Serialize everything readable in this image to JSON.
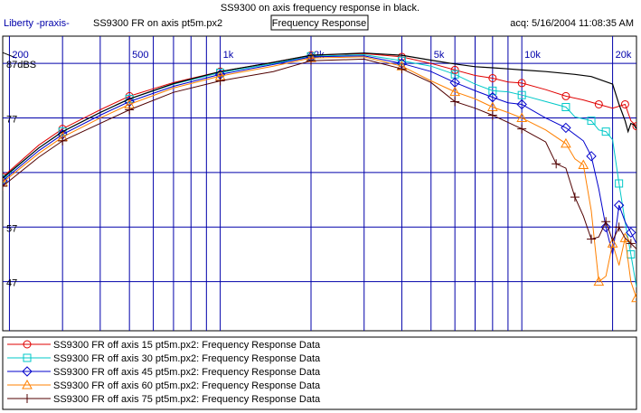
{
  "chart_data": {
    "type": "line",
    "title": "SS9300 on axis frequency response in black.",
    "header_left_app": "Liberty -praxis-",
    "header_left_file": "SS9300 FR on axis pt5m.px2",
    "header_center": "Frequency Response",
    "header_right": "acq: 5/16/2004 11:08:35 AM",
    "x_scale": "log",
    "xlim": [
      190,
      24000
    ],
    "ylim": [
      38,
      92
    ],
    "x_tick_labels": [
      {
        "value": 200,
        "label": "200"
      },
      {
        "value": 500,
        "label": "500"
      },
      {
        "value": 1000,
        "label": "1k"
      },
      {
        "value": 2000,
        "label": "2k"
      },
      {
        "value": 5000,
        "label": "5k"
      },
      {
        "value": 10000,
        "label": "10k"
      },
      {
        "value": 20000,
        "label": "20k"
      }
    ],
    "y_tick_labels": [
      {
        "value": 87,
        "label": "87dBS"
      },
      {
        "value": 77,
        "label": "77"
      },
      {
        "value": 57,
        "label": "57"
      },
      {
        "value": 47,
        "label": "47"
      }
    ],
    "x_gridlines": [
      200,
      300,
      400,
      500,
      600,
      700,
      800,
      900,
      1000,
      2000,
      3000,
      4000,
      5000,
      6000,
      7000,
      8000,
      9000,
      10000,
      20000
    ],
    "y_gridlines": [
      87,
      77,
      67,
      57,
      47
    ],
    "legend_position": "bottom",
    "series": [
      {
        "name": "SS9300 FR off axis  15 pt5m.px2:  Frequency Response Data",
        "color": "#e00000",
        "marker": "circle",
        "points": [
          [
            190,
            66.2
          ],
          [
            250,
            72
          ],
          [
            300,
            75
          ],
          [
            400,
            78.5
          ],
          [
            500,
            81
          ],
          [
            700,
            83.5
          ],
          [
            1000,
            85.5
          ],
          [
            1500,
            87.2
          ],
          [
            2000,
            88.5
          ],
          [
            3000,
            88.8
          ],
          [
            4000,
            88.2
          ],
          [
            5000,
            87
          ],
          [
            6000,
            85.8
          ],
          [
            7000,
            84.8
          ],
          [
            8000,
            84.3
          ],
          [
            9000,
            83.6
          ],
          [
            10000,
            83.4
          ],
          [
            12000,
            82.2
          ],
          [
            14000,
            81
          ],
          [
            16000,
            80.3
          ],
          [
            18000,
            79.5
          ],
          [
            20000,
            78.8
          ],
          [
            22000,
            79.5
          ],
          [
            23000,
            76.5
          ],
          [
            24000,
            75.5
          ]
        ]
      },
      {
        "name": "SS9300 FR off axis  30 pt5m.px2:  Frequency Response Data",
        "color": "#00c8c8",
        "marker": "square",
        "points": [
          [
            190,
            65.8
          ],
          [
            250,
            71.5
          ],
          [
            300,
            74.5
          ],
          [
            400,
            78
          ],
          [
            500,
            80.5
          ],
          [
            700,
            83.2
          ],
          [
            1000,
            85.3
          ],
          [
            1500,
            87
          ],
          [
            2000,
            88.3
          ],
          [
            3000,
            88.6
          ],
          [
            4000,
            87.5
          ],
          [
            5000,
            86.5
          ],
          [
            6000,
            85
          ],
          [
            7000,
            83.2
          ],
          [
            8000,
            82
          ],
          [
            9000,
            81.8
          ],
          [
            10000,
            81.2
          ],
          [
            12000,
            80
          ],
          [
            14000,
            79
          ],
          [
            15000,
            77.2
          ],
          [
            17000,
            76.5
          ],
          [
            18000,
            74.8
          ],
          [
            19000,
            74.5
          ],
          [
            20000,
            73
          ],
          [
            21000,
            65
          ],
          [
            22000,
            58
          ],
          [
            23000,
            52
          ],
          [
            24000,
            46
          ]
        ]
      },
      {
        "name": "SS9300 FR off axis  45 pt5m.px2:  Frequency Response Data",
        "color": "#0000cc",
        "marker": "diamond",
        "points": [
          [
            190,
            65.5
          ],
          [
            250,
            71
          ],
          [
            300,
            74
          ],
          [
            400,
            77.5
          ],
          [
            500,
            80
          ],
          [
            700,
            82.8
          ],
          [
            1000,
            85
          ],
          [
            1500,
            86.8
          ],
          [
            2000,
            88.2
          ],
          [
            3000,
            88.4
          ],
          [
            4000,
            87
          ],
          [
            5000,
            85.5
          ],
          [
            6000,
            83.5
          ],
          [
            7000,
            82
          ],
          [
            8000,
            80.8
          ],
          [
            9000,
            79.8
          ],
          [
            10000,
            79.5
          ],
          [
            12000,
            77
          ],
          [
            14000,
            75.2
          ],
          [
            16000,
            72.8
          ],
          [
            17000,
            70
          ],
          [
            18000,
            64
          ],
          [
            19000,
            57
          ],
          [
            20000,
            52
          ],
          [
            21000,
            61
          ],
          [
            22000,
            58
          ],
          [
            23000,
            56
          ],
          [
            24000,
            54
          ]
        ]
      },
      {
        "name": "SS9300 FR off axis  60 pt5m.px2:  Frequency Response Data",
        "color": "#ff8000",
        "marker": "triangle",
        "points": [
          [
            190,
            65.2
          ],
          [
            250,
            70.5
          ],
          [
            300,
            73.5
          ],
          [
            400,
            77
          ],
          [
            500,
            79.5
          ],
          [
            700,
            82.5
          ],
          [
            1000,
            84.7
          ],
          [
            1500,
            86.5
          ],
          [
            2000,
            88
          ],
          [
            3000,
            88.2
          ],
          [
            4000,
            86.5
          ],
          [
            5000,
            83.8
          ],
          [
            6000,
            81.8
          ],
          [
            7000,
            80.5
          ],
          [
            8000,
            79
          ],
          [
            9000,
            78
          ],
          [
            10000,
            77
          ],
          [
            12000,
            74.8
          ],
          [
            14000,
            72.3
          ],
          [
            15000,
            69.5
          ],
          [
            16000,
            68.4
          ],
          [
            17000,
            60
          ],
          [
            18000,
            47
          ],
          [
            19000,
            48
          ],
          [
            20000,
            54
          ],
          [
            21000,
            50
          ],
          [
            22000,
            55
          ],
          [
            23000,
            47
          ],
          [
            24000,
            44
          ]
        ]
      },
      {
        "name": "SS9300 FR off axis  75 pt5m.px2:  Frequency Response Data",
        "color": "#500000",
        "marker": "cross",
        "points": [
          [
            190,
            64.5
          ],
          [
            250,
            69.8
          ],
          [
            300,
            72.8
          ],
          [
            400,
            76
          ],
          [
            500,
            78.5
          ],
          [
            700,
            81.7
          ],
          [
            1000,
            83.8
          ],
          [
            1500,
            85.5
          ],
          [
            2000,
            87.5
          ],
          [
            3000,
            87.8
          ],
          [
            4000,
            86
          ],
          [
            5000,
            83.5
          ],
          [
            6000,
            80
          ],
          [
            7000,
            78.8
          ],
          [
            8000,
            77.5
          ],
          [
            9000,
            76.2
          ],
          [
            10000,
            75
          ],
          [
            12000,
            72.6
          ],
          [
            13000,
            68.6
          ],
          [
            14000,
            67.8
          ],
          [
            15000,
            62.5
          ],
          [
            16000,
            59
          ],
          [
            17000,
            54.8
          ],
          [
            18000,
            55.2
          ],
          [
            19000,
            58
          ],
          [
            20000,
            54.5
          ],
          [
            21000,
            57
          ],
          [
            22000,
            55
          ],
          [
            23000,
            54
          ],
          [
            24000,
            53
          ]
        ]
      },
      {
        "name": "",
        "color": "#000000",
        "marker": "none",
        "points": [
          [
            190,
            66
          ],
          [
            250,
            71.5
          ],
          [
            300,
            74.5
          ],
          [
            400,
            78
          ],
          [
            500,
            80.5
          ],
          [
            700,
            83.3
          ],
          [
            1000,
            85.5
          ],
          [
            1500,
            87.2
          ],
          [
            2000,
            88.5
          ],
          [
            3000,
            88.9
          ],
          [
            4000,
            88.5
          ],
          [
            5000,
            87.6
          ],
          [
            6000,
            86.9
          ],
          [
            7000,
            86.4
          ],
          [
            8000,
            86.2
          ],
          [
            9000,
            86
          ],
          [
            10000,
            85.8
          ],
          [
            12000,
            85.5
          ],
          [
            15000,
            85
          ],
          [
            17000,
            84.6
          ],
          [
            20000,
            83.2
          ],
          [
            21000,
            79.5
          ],
          [
            22000,
            76.5
          ],
          [
            22500,
            74.5
          ],
          [
            23000,
            76
          ],
          [
            23500,
            75.8
          ],
          [
            24000,
            75
          ]
        ]
      }
    ]
  }
}
